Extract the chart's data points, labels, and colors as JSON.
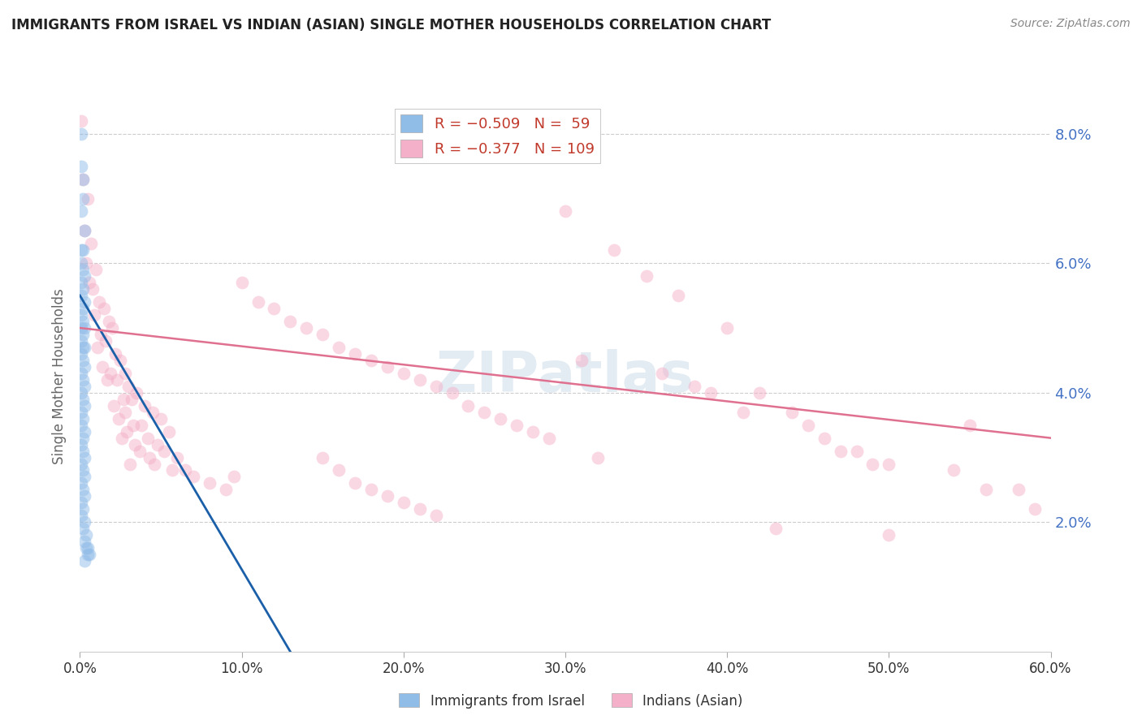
{
  "title": "IMMIGRANTS FROM ISRAEL VS INDIAN (ASIAN) SINGLE MOTHER HOUSEHOLDS CORRELATION CHART",
  "source": "Source: ZipAtlas.com",
  "xlabel_ticks": [
    "0.0%",
    "10.0%",
    "20.0%",
    "30.0%",
    "40.0%",
    "50.0%",
    "60.0%"
  ],
  "ylabel_label": "Single Mother Households",
  "ylabel_ticks": [
    "8.0%",
    "6.0%",
    "4.0%",
    "2.0%"
  ],
  "xlim": [
    0.0,
    0.6
  ],
  "ylim": [
    0.0,
    0.085
  ],
  "legend_label1": "Immigrants from Israel",
  "legend_label2": "Indians (Asian)",
  "watermark": "ZIPatlas",
  "blue_scatter": [
    [
      0.001,
      0.08
    ],
    [
      0.001,
      0.075
    ],
    [
      0.002,
      0.073
    ],
    [
      0.002,
      0.07
    ],
    [
      0.001,
      0.068
    ],
    [
      0.003,
      0.065
    ],
    [
      0.001,
      0.062
    ],
    [
      0.002,
      0.062
    ],
    [
      0.001,
      0.06
    ],
    [
      0.002,
      0.059
    ],
    [
      0.003,
      0.058
    ],
    [
      0.001,
      0.057
    ],
    [
      0.002,
      0.056
    ],
    [
      0.001,
      0.055
    ],
    [
      0.003,
      0.054
    ],
    [
      0.002,
      0.053
    ],
    [
      0.001,
      0.052
    ],
    [
      0.002,
      0.051
    ],
    [
      0.001,
      0.05
    ],
    [
      0.003,
      0.05
    ],
    [
      0.002,
      0.049
    ],
    [
      0.001,
      0.048
    ],
    [
      0.003,
      0.047
    ],
    [
      0.002,
      0.047
    ],
    [
      0.001,
      0.046
    ],
    [
      0.002,
      0.045
    ],
    [
      0.003,
      0.044
    ],
    [
      0.001,
      0.043
    ],
    [
      0.002,
      0.042
    ],
    [
      0.003,
      0.041
    ],
    [
      0.001,
      0.04
    ],
    [
      0.002,
      0.039
    ],
    [
      0.003,
      0.038
    ],
    [
      0.001,
      0.037
    ],
    [
      0.002,
      0.036
    ],
    [
      0.001,
      0.035
    ],
    [
      0.003,
      0.034
    ],
    [
      0.002,
      0.033
    ],
    [
      0.001,
      0.032
    ],
    [
      0.002,
      0.031
    ],
    [
      0.003,
      0.03
    ],
    [
      0.001,
      0.029
    ],
    [
      0.002,
      0.028
    ],
    [
      0.003,
      0.027
    ],
    [
      0.001,
      0.026
    ],
    [
      0.002,
      0.025
    ],
    [
      0.003,
      0.024
    ],
    [
      0.001,
      0.023
    ],
    [
      0.002,
      0.022
    ],
    [
      0.001,
      0.021
    ],
    [
      0.003,
      0.02
    ],
    [
      0.002,
      0.019
    ],
    [
      0.004,
      0.018
    ],
    [
      0.003,
      0.017
    ],
    [
      0.005,
      0.016
    ],
    [
      0.004,
      0.016
    ],
    [
      0.006,
      0.015
    ],
    [
      0.005,
      0.015
    ],
    [
      0.003,
      0.014
    ]
  ],
  "pink_scatter": [
    [
      0.001,
      0.082
    ],
    [
      0.002,
      0.073
    ],
    [
      0.005,
      0.07
    ],
    [
      0.003,
      0.065
    ],
    [
      0.007,
      0.063
    ],
    [
      0.004,
      0.06
    ],
    [
      0.01,
      0.059
    ],
    [
      0.006,
      0.057
    ],
    [
      0.008,
      0.056
    ],
    [
      0.012,
      0.054
    ],
    [
      0.015,
      0.053
    ],
    [
      0.009,
      0.052
    ],
    [
      0.018,
      0.051
    ],
    [
      0.02,
      0.05
    ],
    [
      0.013,
      0.049
    ],
    [
      0.016,
      0.048
    ],
    [
      0.011,
      0.047
    ],
    [
      0.022,
      0.046
    ],
    [
      0.025,
      0.045
    ],
    [
      0.014,
      0.044
    ],
    [
      0.019,
      0.043
    ],
    [
      0.028,
      0.043
    ],
    [
      0.023,
      0.042
    ],
    [
      0.017,
      0.042
    ],
    [
      0.03,
      0.041
    ],
    [
      0.035,
      0.04
    ],
    [
      0.027,
      0.039
    ],
    [
      0.032,
      0.039
    ],
    [
      0.04,
      0.038
    ],
    [
      0.021,
      0.038
    ],
    [
      0.028,
      0.037
    ],
    [
      0.045,
      0.037
    ],
    [
      0.024,
      0.036
    ],
    [
      0.05,
      0.036
    ],
    [
      0.033,
      0.035
    ],
    [
      0.038,
      0.035
    ],
    [
      0.029,
      0.034
    ],
    [
      0.055,
      0.034
    ],
    [
      0.026,
      0.033
    ],
    [
      0.042,
      0.033
    ],
    [
      0.048,
      0.032
    ],
    [
      0.034,
      0.032
    ],
    [
      0.037,
      0.031
    ],
    [
      0.052,
      0.031
    ],
    [
      0.043,
      0.03
    ],
    [
      0.06,
      0.03
    ],
    [
      0.031,
      0.029
    ],
    [
      0.046,
      0.029
    ],
    [
      0.057,
      0.028
    ],
    [
      0.065,
      0.028
    ],
    [
      0.07,
      0.027
    ],
    [
      0.08,
      0.026
    ],
    [
      0.09,
      0.025
    ],
    [
      0.095,
      0.027
    ],
    [
      0.1,
      0.057
    ],
    [
      0.11,
      0.054
    ],
    [
      0.12,
      0.053
    ],
    [
      0.13,
      0.051
    ],
    [
      0.14,
      0.05
    ],
    [
      0.15,
      0.049
    ],
    [
      0.16,
      0.047
    ],
    [
      0.17,
      0.046
    ],
    [
      0.18,
      0.045
    ],
    [
      0.19,
      0.044
    ],
    [
      0.2,
      0.043
    ],
    [
      0.21,
      0.042
    ],
    [
      0.22,
      0.041
    ],
    [
      0.23,
      0.04
    ],
    [
      0.24,
      0.038
    ],
    [
      0.25,
      0.037
    ],
    [
      0.26,
      0.036
    ],
    [
      0.27,
      0.035
    ],
    [
      0.28,
      0.034
    ],
    [
      0.29,
      0.033
    ],
    [
      0.3,
      0.068
    ],
    [
      0.33,
      0.062
    ],
    [
      0.35,
      0.058
    ],
    [
      0.37,
      0.055
    ],
    [
      0.4,
      0.05
    ],
    [
      0.31,
      0.045
    ],
    [
      0.36,
      0.043
    ],
    [
      0.38,
      0.041
    ],
    [
      0.39,
      0.04
    ],
    [
      0.42,
      0.04
    ],
    [
      0.41,
      0.037
    ],
    [
      0.44,
      0.037
    ],
    [
      0.45,
      0.035
    ],
    [
      0.46,
      0.033
    ],
    [
      0.47,
      0.031
    ],
    [
      0.48,
      0.031
    ],
    [
      0.49,
      0.029
    ],
    [
      0.5,
      0.029
    ],
    [
      0.15,
      0.03
    ],
    [
      0.16,
      0.028
    ],
    [
      0.17,
      0.026
    ],
    [
      0.18,
      0.025
    ],
    [
      0.19,
      0.024
    ],
    [
      0.2,
      0.023
    ],
    [
      0.21,
      0.022
    ],
    [
      0.22,
      0.021
    ],
    [
      0.32,
      0.03
    ],
    [
      0.43,
      0.019
    ],
    [
      0.5,
      0.018
    ],
    [
      0.58,
      0.025
    ],
    [
      0.54,
      0.028
    ],
    [
      0.56,
      0.025
    ],
    [
      0.59,
      0.022
    ],
    [
      0.55,
      0.035
    ]
  ],
  "blue_line": {
    "x0": 0.0,
    "y0": 0.055,
    "x1": 0.13,
    "y1": 0.0
  },
  "pink_line": {
    "x0": 0.0,
    "y0": 0.05,
    "x1": 0.6,
    "y1": 0.033
  },
  "scatter_size": 130,
  "scatter_alpha": 0.5,
  "blue_color": "#90bce8",
  "pink_color": "#f4b0c8",
  "blue_line_color": "#1a5fa8",
  "pink_line_color": "#e07090",
  "grid_color": "#cccccc",
  "background_color": "#ffffff",
  "right_ytick_vals": [
    0.02,
    0.04,
    0.06,
    0.08
  ],
  "right_ytick_labels": [
    "2.0%",
    "4.0%",
    "6.0%",
    "8.0%"
  ],
  "xtick_vals": [
    0.0,
    0.1,
    0.2,
    0.3,
    0.4,
    0.5,
    0.6
  ]
}
